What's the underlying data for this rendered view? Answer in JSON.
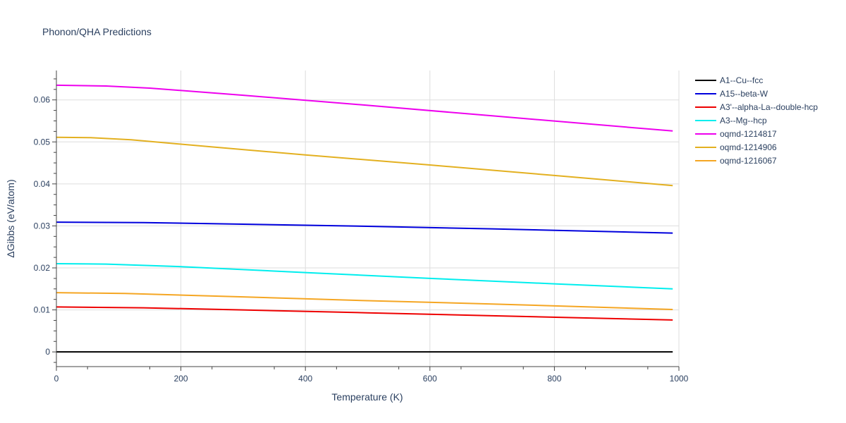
{
  "chart_data": {
    "type": "line",
    "title": "Phonon/QHA Predictions",
    "xlabel": "Temperature (K)",
    "ylabel": "ΔGibbs (eV/atom)",
    "xlim": [
      0,
      1000
    ],
    "ylim": [
      -0.0035,
      0.067
    ],
    "x_ticks": [
      "0",
      "200",
      "400",
      "600",
      "800",
      "1000"
    ],
    "y_ticks": [
      "0",
      "0.01",
      "0.02",
      "0.03",
      "0.04",
      "0.05",
      "0.06"
    ],
    "grid": true,
    "legend_position": "top-right",
    "series": [
      {
        "name": "A1--Cu--fcc",
        "color": "#000000",
        "x": [
          0,
          990
        ],
        "y": [
          0.0,
          0.0
        ]
      },
      {
        "name": "A15--beta-W",
        "color": "#0000dd",
        "x": [
          0,
          140,
          300,
          500,
          700,
          990
        ],
        "y": [
          0.0309,
          0.0308,
          0.0304,
          0.0299,
          0.0293,
          0.0283
        ]
      },
      {
        "name": "A3'--alpha-La--double-hcp",
        "color": "#ee0000",
        "x": [
          0,
          140,
          300,
          500,
          700,
          990
        ],
        "y": [
          0.0107,
          0.0105,
          0.01,
          0.0093,
          0.0086,
          0.0076
        ]
      },
      {
        "name": "A3--Mg--hcp",
        "color": "#00eeee",
        "x": [
          0,
          80,
          200,
          400,
          600,
          800,
          990
        ],
        "y": [
          0.021,
          0.0209,
          0.0203,
          0.0189,
          0.0175,
          0.0162,
          0.015
        ]
      },
      {
        "name": "oqmd-1214817",
        "color": "#ee00ee",
        "x": [
          0,
          80,
          150,
          300,
          500,
          700,
          990
        ],
        "y": [
          0.0635,
          0.0633,
          0.0628,
          0.0611,
          0.0587,
          0.0562,
          0.0526
        ]
      },
      {
        "name": "oqmd-1214906",
        "color": "#e3b020",
        "x": [
          0,
          55,
          120,
          250,
          400,
          600,
          800,
          990
        ],
        "y": [
          0.0511,
          0.051,
          0.0505,
          0.0488,
          0.0469,
          0.0445,
          0.042,
          0.0396
        ]
      },
      {
        "name": "oqmd-1216067",
        "color": "#f5a623",
        "x": [
          0,
          110,
          300,
          500,
          700,
          990
        ],
        "y": [
          0.0141,
          0.0139,
          0.0131,
          0.0122,
          0.0114,
          0.0101
        ]
      }
    ]
  }
}
